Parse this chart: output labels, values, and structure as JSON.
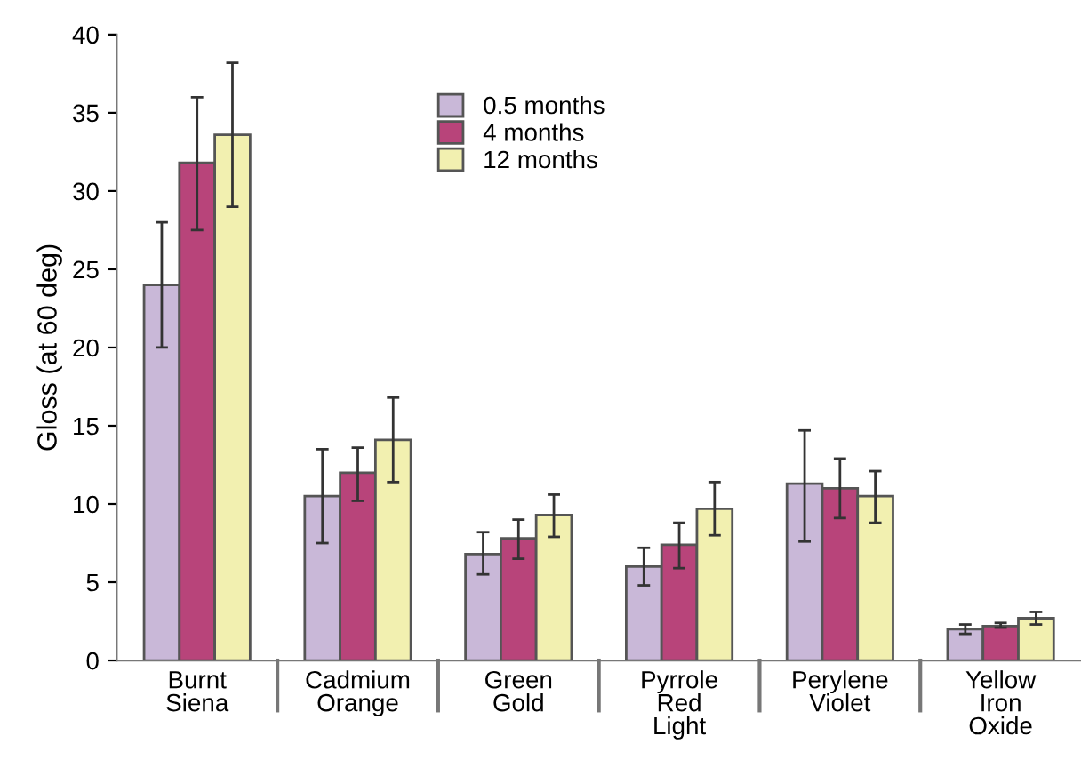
{
  "chart_data": {
    "type": "bar",
    "ylabel": "Gloss (at 60 deg)",
    "categories": [
      "Burnt\nSiena",
      "Cadmium\nOrange",
      "Green\nGold",
      "Pyrrole\nRed\nLight",
      "Perylene\nViolet",
      "Yellow\nIron\nOxide"
    ],
    "series": [
      {
        "name": "0.5 months",
        "color": "#c9b8d8",
        "values": [
          24,
          10.5,
          6.8,
          6,
          11.3,
          2
        ],
        "errors": [
          [
            20,
            28
          ],
          [
            7.5,
            13.5
          ],
          [
            5.5,
            8.2
          ],
          [
            4.8,
            7.2
          ],
          [
            7.6,
            14.7
          ],
          [
            1.7,
            2.3
          ]
        ]
      },
      {
        "name": "4 months",
        "color": "#b8447a",
        "values": [
          31.8,
          12,
          7.8,
          7.4,
          11,
          2.2
        ],
        "errors": [
          [
            27.5,
            36
          ],
          [
            10.2,
            13.6
          ],
          [
            6.5,
            9
          ],
          [
            5.9,
            8.8
          ],
          [
            9.1,
            12.9
          ],
          [
            2.1,
            2.4
          ]
        ]
      },
      {
        "name": "12 months",
        "color": "#f2f0b0",
        "values": [
          33.6,
          14.1,
          9.3,
          9.7,
          10.5,
          2.7
        ],
        "errors": [
          [
            29,
            38.2
          ],
          [
            11.4,
            16.8
          ],
          [
            7.9,
            10.6
          ],
          [
            8,
            11.4
          ],
          [
            8.8,
            12.1
          ],
          [
            2.3,
            3.1
          ]
        ]
      }
    ],
    "ylim": [
      0,
      40
    ],
    "yticks": [
      0,
      5,
      10,
      15,
      20,
      25,
      30,
      35,
      40
    ],
    "grid": false,
    "legend": "top"
  }
}
